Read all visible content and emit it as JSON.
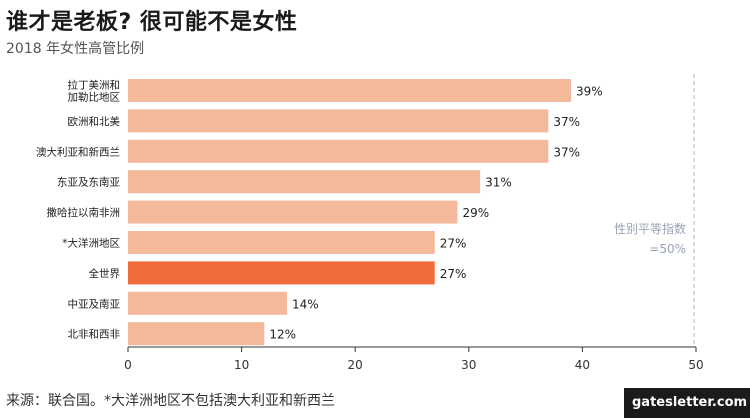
{
  "header": {
    "title": "谁才是老板? 很可能不是女性",
    "subtitle": "2018 年女性高管比例"
  },
  "footer": {
    "source": "来源：联合国。*大洋洲地区不包括澳大利亚和新西兰",
    "watermark": "gatesletter.com"
  },
  "colors": {
    "bar": "#f4b89a",
    "highlight": "#f26b3a",
    "grid": "#d9d9d9",
    "reference_line": "#a9b3c7",
    "reference_text": "#9aa3b5"
  },
  "chart_data": {
    "type": "bar",
    "orientation": "horizontal",
    "title": "谁才是老板? 很可能不是女性",
    "subtitle": "2018 年女性高管比例",
    "categories": [
      "拉丁美洲和加勒比地区",
      "欧洲和北美",
      "澳大利亚和新西兰",
      "东亚及东南亚",
      "撒哈拉以南非洲",
      "*大洋洲地区",
      "全世界",
      "中亚及南亚",
      "北非和西非"
    ],
    "category_lines": [
      [
        "拉丁美洲和",
        "加勒比地区"
      ],
      [
        "欧洲和北美"
      ],
      [
        "澳大利亚和新西兰"
      ],
      [
        "东亚及东南亚"
      ],
      [
        "撒哈拉以南非洲"
      ],
      [
        "*大洋洲地区"
      ],
      [
        "全世界"
      ],
      [
        "中亚及南亚"
      ],
      [
        "北非和西非"
      ]
    ],
    "values": [
      39,
      37,
      37,
      31,
      29,
      27,
      27,
      14,
      12
    ],
    "value_labels": [
      "39%",
      "37%",
      "37%",
      "31%",
      "29%",
      "27%",
      "27%",
      "14%",
      "12%"
    ],
    "highlight_category": "全世界",
    "xlim": [
      0,
      50
    ],
    "xticks": [
      0,
      10,
      20,
      30,
      40,
      50
    ],
    "reference": {
      "value": 50,
      "label_lines": [
        "性别平等指数",
        "=50%"
      ]
    },
    "xlabel": "",
    "ylabel": "",
    "grid": false,
    "legend": "none"
  }
}
